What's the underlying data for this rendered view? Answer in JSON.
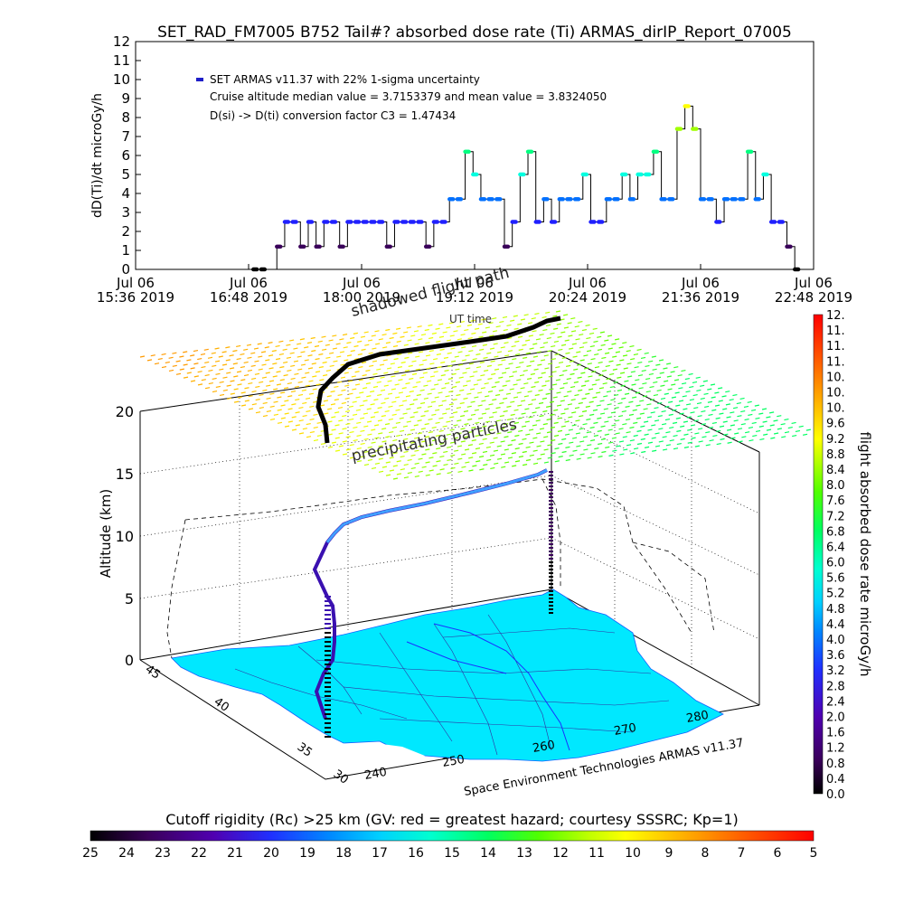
{
  "chart_data": [
    {
      "type": "line",
      "title": "SET_RAD_FM7005  B752 Tail#? absorbed dose rate (Ti) ARMAS_dirIP_Report_07005",
      "ylabel": "dD(Ti)/dt microGy/h",
      "xlabel": "UT time",
      "ylim": [
        0,
        12
      ],
      "y_ticks": [
        "0",
        "1",
        "2",
        "3",
        "4",
        "5",
        "6",
        "7",
        "8",
        "9",
        "10",
        "11",
        "12"
      ],
      "x_tick_labels": [
        {
          "line1": "Jul 06",
          "line2": "15:36 2019"
        },
        {
          "line1": "Jul 06",
          "line2": "16:48 2019"
        },
        {
          "line1": "Jul 06",
          "line2": "18:00 2019"
        },
        {
          "line1": "Jul 06",
          "line2": "19:12 2019"
        },
        {
          "line1": "Jul 06",
          "line2": "20:24 2019"
        },
        {
          "line1": "Jul 06",
          "line2": "21:36 2019"
        },
        {
          "line1": "Jul 06",
          "line2": "22:48 2019"
        }
      ],
      "annotations": [
        "SET ARMAS v11.37 with 22% 1-sigma uncertainty",
        "Cruise altitude median value = 3.7153379 and mean value = 3.8324050",
        "D(si) -> D(ti) conversion factor C3 = 1.47434"
      ],
      "series": [
        {
          "name": "SET ARMAS v11.37 with 22% 1-sigma uncertainty",
          "x_minutes_since_1536": [
            75,
            80,
            90,
            95,
            100,
            105,
            110,
            115,
            120,
            125,
            130,
            135,
            140,
            145,
            150,
            155,
            160,
            165,
            170,
            175,
            180,
            185,
            190,
            195,
            200,
            205,
            210,
            215,
            220,
            225,
            230,
            235,
            240,
            245,
            250,
            255,
            260,
            265,
            270,
            275,
            280,
            285,
            290,
            295,
            300,
            305,
            310,
            315,
            320,
            325,
            330,
            335,
            340,
            345,
            350,
            355,
            360,
            365,
            370,
            375,
            380,
            385,
            390,
            395,
            400,
            405,
            410,
            415,
            420
          ],
          "values": [
            0,
            0,
            1.2,
            2.5,
            2.5,
            1.2,
            2.5,
            1.2,
            2.5,
            2.5,
            1.2,
            2.5,
            2.5,
            2.5,
            2.5,
            2.5,
            1.2,
            2.5,
            2.5,
            2.5,
            2.5,
            1.2,
            2.5,
            2.5,
            3.7,
            3.7,
            6.2,
            5,
            3.7,
            3.7,
            3.7,
            1.2,
            2.5,
            5,
            6.2,
            2.5,
            3.7,
            2.5,
            3.7,
            3.7,
            3.7,
            5,
            2.5,
            2.5,
            3.7,
            3.7,
            5,
            3.7,
            5,
            5,
            6.2,
            3.7,
            3.7,
            7.4,
            8.6,
            7.4,
            3.7,
            3.7,
            2.5,
            3.7,
            3.7,
            3.7,
            6.2,
            3.7,
            5,
            2.5,
            2.5,
            1.2,
            0
          ]
        }
      ]
    },
    {
      "type": "scatter",
      "title": "",
      "zlabel": "Altitude (km)",
      "z_ticks": [
        "0",
        "5",
        "10",
        "15",
        "20"
      ],
      "lat_ticks": [
        "30",
        "35",
        "40",
        "45"
      ],
      "lon_ticks": [
        "240",
        "250",
        "260",
        "270",
        "280"
      ],
      "annotations": [
        "shadowed flight path",
        "precipitating particles"
      ],
      "credit": "Space Environment Technologies ARMAS v11.37",
      "colorbar": {
        "label": "flight absorbed dose rate microGy/h",
        "ticks": [
          "0.0",
          "0.4",
          "0.8",
          "1.2",
          "1.6",
          "2.0",
          "2.4",
          "2.8",
          "3.2",
          "3.6",
          "4.0",
          "4.4",
          "4.8",
          "5.2",
          "5.6",
          "6.0",
          "6.4",
          "6.8",
          "7.2",
          "7.6",
          "8.0",
          "8.4",
          "8.8",
          "9.2",
          "9.6",
          "10.",
          "10.",
          "10.",
          "11.",
          "11.",
          "11.",
          "12."
        ]
      }
    },
    {
      "type": "heatmap",
      "title": "Cutoff rigidity (Rc) >25 km (GV: red = greatest hazard; courtesy SSSRC; Kp=1)",
      "colorbar_ticks": [
        "25",
        "24",
        "23",
        "22",
        "21",
        "20",
        "19",
        "18",
        "17",
        "16",
        "15",
        "14",
        "13",
        "12",
        "11",
        "10",
        "9",
        "8",
        "7",
        "6",
        "5"
      ]
    }
  ],
  "colors": {
    "colorscale": [
      "#000000",
      "#3a005a",
      "#5a00a0",
      "#2020ff",
      "#0070ff",
      "#00c8ff",
      "#00ffe0",
      "#00ff80",
      "#30ff00",
      "#a0ff00",
      "#ffff00",
      "#ffc000",
      "#ff8000",
      "#ff3000",
      "#ff0000"
    ],
    "map_fill": "#00e8ff",
    "flight_path": "#000000"
  }
}
